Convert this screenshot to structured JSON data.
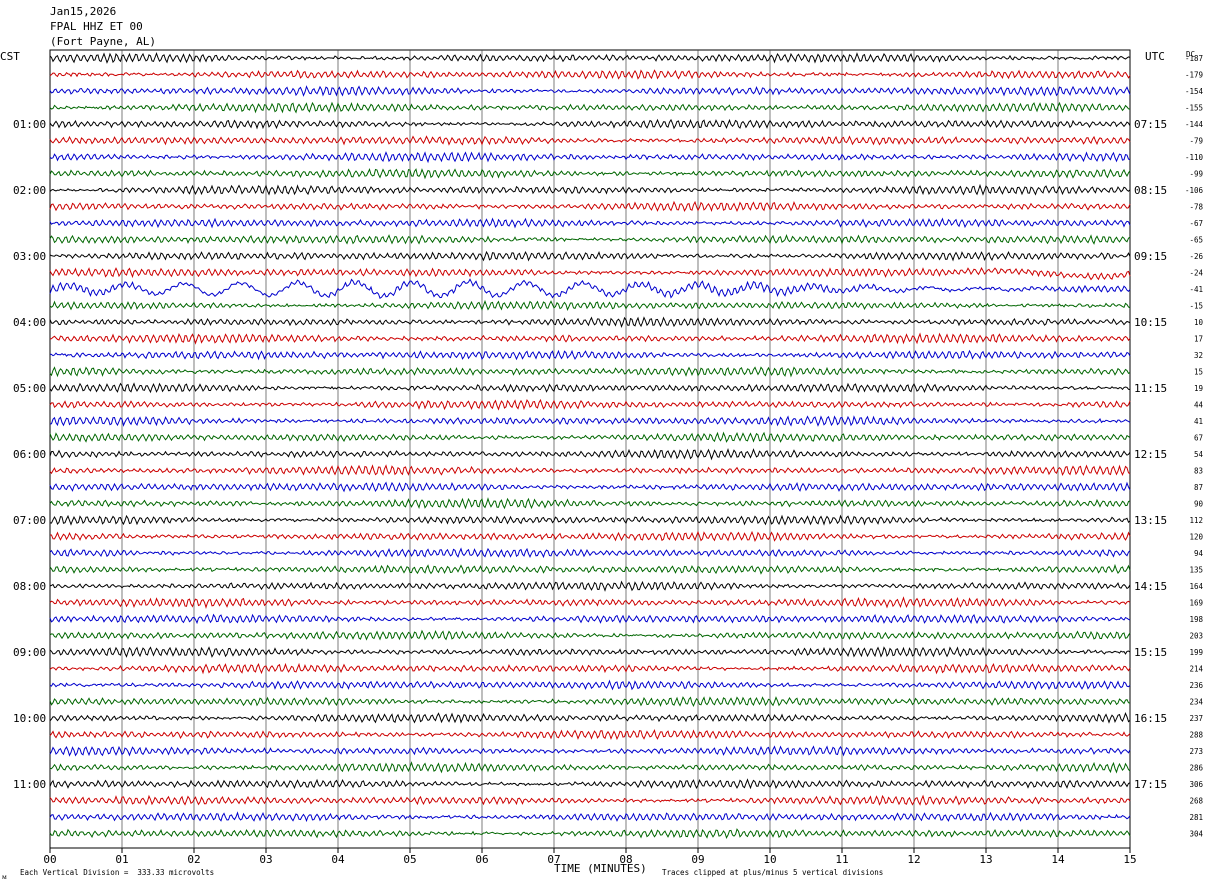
{
  "header": {
    "date": "Jan15,2026",
    "station": "FPAL HHZ ET 00",
    "location": "(Fort Payne, AL)"
  },
  "left_tz": "CST",
  "right_tz": "UTC",
  "dc_label": "DC",
  "footer": {
    "scale_note": "Each Vertical Division =  333.33 microvolts",
    "clip_note": "Traces clipped at plus/minus 5 vertical divisions",
    "mark": "ᴍ"
  },
  "colors": {
    "trace_cycle": [
      "#000000",
      "#cc0000",
      "#0000cc",
      "#006600"
    ],
    "grid": "#000000",
    "background": "#ffffff"
  },
  "chart_data": {
    "type": "line",
    "xlabel": "TIME (MINUTES)",
    "x_ticks": [
      "00",
      "01",
      "02",
      "03",
      "04",
      "05",
      "06",
      "07",
      "08",
      "09",
      "10",
      "11",
      "12",
      "13",
      "14",
      "15"
    ],
    "xlim": [
      0,
      15
    ],
    "minutes_per_trace": 15,
    "hour_labels_left": [
      "01:00",
      "02:00",
      "03:00",
      "04:00",
      "05:00",
      "06:00",
      "07:00",
      "08:00",
      "09:00",
      "10:00",
      "11:00"
    ],
    "hour_labels_right": [
      "07:15",
      "08:15",
      "09:15",
      "10:15",
      "11:15",
      "12:15",
      "13:15",
      "14:15",
      "15:15",
      "16:15",
      "17:15"
    ],
    "dc_offsets": [
      -187,
      -179,
      -154,
      -155,
      -144,
      -79,
      -110,
      -99,
      -106,
      -78,
      -67,
      -65,
      -26,
      -24,
      -41,
      -15,
      10,
      17,
      32,
      15,
      19,
      44,
      41,
      67,
      54,
      83,
      87,
      90,
      112,
      120,
      94,
      135,
      164,
      169,
      198,
      203,
      199,
      214,
      236,
      234,
      237,
      288,
      273,
      286,
      306,
      268,
      281,
      304
    ],
    "trace_count": 48,
    "event_rows": [
      13,
      14
    ]
  }
}
